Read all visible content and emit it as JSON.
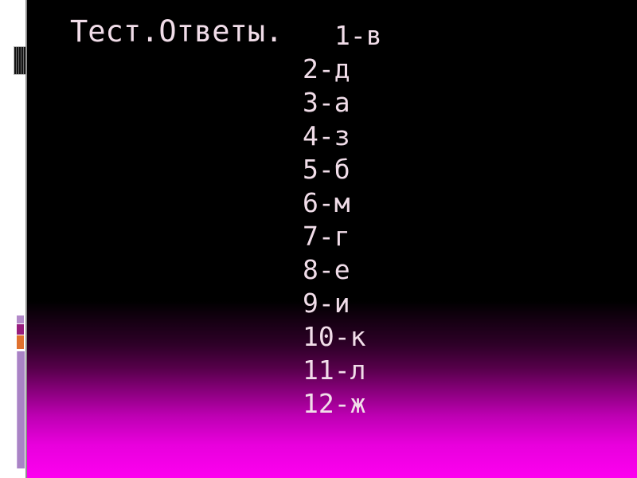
{
  "slide": {
    "title": "Тест.Ответы.",
    "answers": [
      "1-в",
      "2-д",
      "3-а",
      "4-з",
      "5-б",
      "6-м",
      "7-г",
      "8-е",
      "9-и",
      "10-к",
      "11-л",
      "12-ж"
    ],
    "colors": {
      "text": "#f1dde9",
      "background_top": "#000000",
      "background_bottom": "#fd00f0",
      "accent_light_purple": "#b38ac9",
      "accent_dark_magenta": "#971c7d",
      "accent_orange": "#e0712e"
    }
  }
}
